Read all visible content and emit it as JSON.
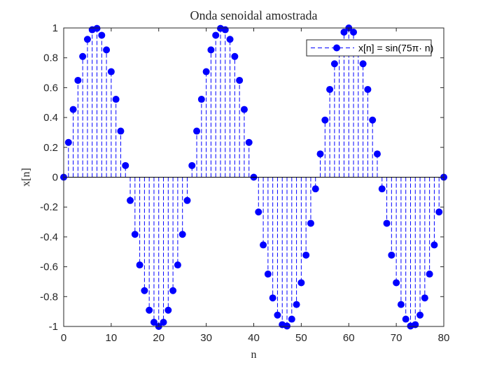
{
  "colors": {
    "series": "#0000ff",
    "axis": "#262626",
    "background": "#ffffff"
  },
  "chart_data": {
    "type": "stem",
    "title": "Onda senoidal amostrada",
    "xlabel": "n",
    "ylabel": "x[n]",
    "xlim": [
      0,
      80
    ],
    "ylim": [
      -1,
      1
    ],
    "xticks": [
      "0",
      "10",
      "20",
      "30",
      "40",
      "50",
      "60",
      "70",
      "80"
    ],
    "yticks": [
      "1",
      "0.8",
      "0.6",
      "0.4",
      "0.2",
      "0",
      "-0.2",
      "-0.4",
      "-0.6",
      "-0.8",
      "-1"
    ],
    "legend": {
      "position": "top-right",
      "style": "dashed stem with filled circle marker"
    },
    "series": [
      {
        "name": "x[n] = sin(75π· n)",
        "x": [
          0,
          1,
          2,
          3,
          4,
          5,
          6,
          7,
          8,
          9,
          10,
          11,
          12,
          13,
          14,
          15,
          16,
          17,
          18,
          19,
          20,
          21,
          22,
          23,
          24,
          25,
          26,
          27,
          28,
          29,
          30,
          31,
          32,
          33,
          34,
          35,
          36,
          37,
          38,
          39,
          40,
          41,
          42,
          43,
          44,
          45,
          46,
          47,
          48,
          49,
          50,
          51,
          52,
          53,
          54,
          55,
          56,
          57,
          58,
          59,
          60,
          61,
          62,
          63,
          64,
          65,
          66,
          67,
          68,
          69,
          70,
          71,
          72,
          73,
          74,
          75,
          76,
          77,
          78,
          79,
          80
        ],
        "y": [
          0,
          0.233,
          0.454,
          0.649,
          0.809,
          0.924,
          0.988,
          0.997,
          0.951,
          0.853,
          0.707,
          0.522,
          0.309,
          0.078,
          -0.156,
          -0.383,
          -0.588,
          -0.76,
          -0.891,
          -0.972,
          -1.0,
          -0.972,
          -0.891,
          -0.76,
          -0.588,
          -0.383,
          -0.156,
          0.078,
          0.309,
          0.522,
          0.707,
          0.853,
          0.951,
          0.997,
          0.988,
          0.924,
          0.809,
          0.649,
          0.454,
          0.233,
          0,
          -0.233,
          -0.454,
          -0.649,
          -0.809,
          -0.924,
          -0.988,
          -0.997,
          -0.951,
          -0.853,
          -0.707,
          -0.522,
          -0.309,
          -0.078,
          0.156,
          0.383,
          0.588,
          0.76,
          0.891,
          0.972,
          1.0,
          0.972,
          0.891,
          0.76,
          0.588,
          0.383,
          0.156,
          -0.078,
          -0.309,
          -0.522,
          -0.707,
          -0.853,
          -0.951,
          -0.997,
          -0.988,
          -0.924,
          -0.809,
          -0.649,
          -0.454,
          -0.233,
          0
        ]
      }
    ]
  }
}
